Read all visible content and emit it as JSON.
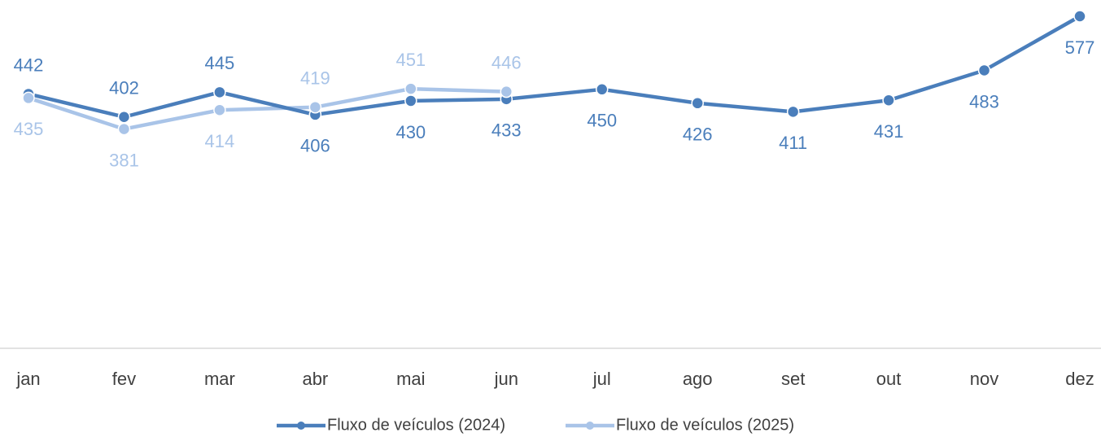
{
  "chart_data": {
    "type": "line",
    "categories": [
      "jan",
      "fev",
      "mar",
      "abr",
      "mai",
      "jun",
      "jul",
      "ago",
      "set",
      "out",
      "nov",
      "dez"
    ],
    "series": [
      {
        "name": "Fluxo de veículos (2024)",
        "color": "#4a7ebb",
        "values": [
          442,
          402,
          445,
          406,
          430,
          433,
          450,
          426,
          411,
          431,
          483,
          577
        ]
      },
      {
        "name": "Fluxo de veículos (2025)",
        "color": "#a9c4e8",
        "values": [
          435,
          381,
          414,
          419,
          451,
          446,
          null,
          null,
          null,
          null,
          null,
          null
        ]
      }
    ]
  }
}
